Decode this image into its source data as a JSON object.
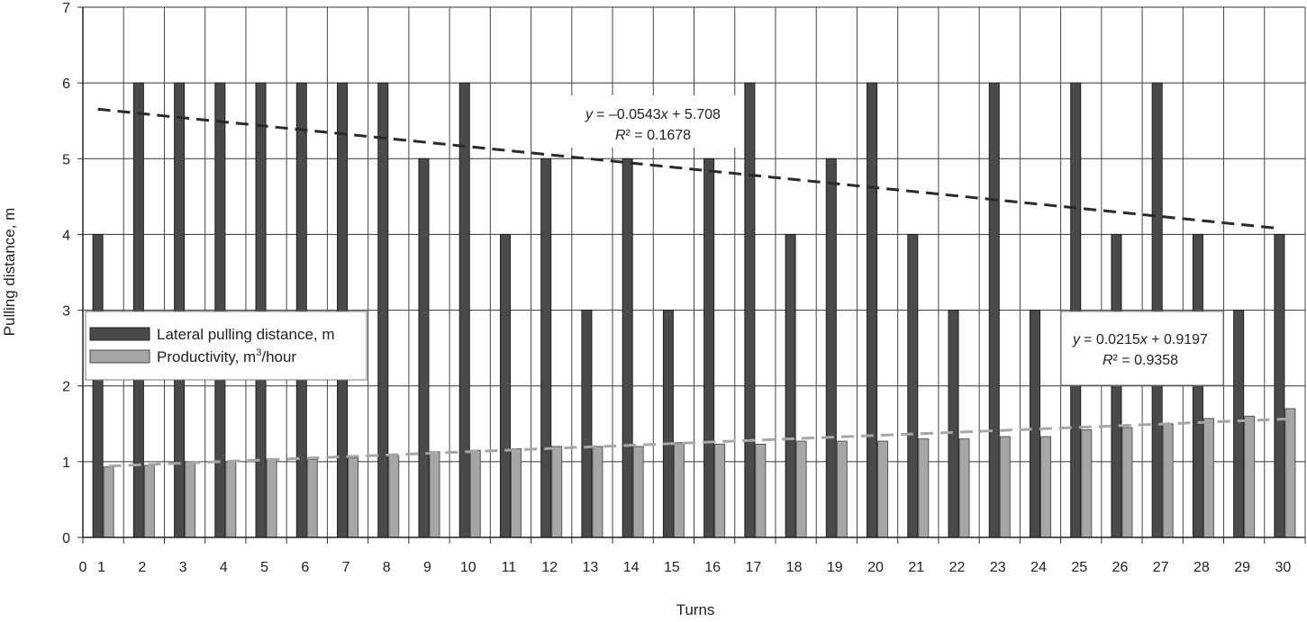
{
  "chart_data": {
    "type": "bar",
    "xlabel": "Turns",
    "ylabel": "Pulling distance, m",
    "ylim": [
      0,
      7
    ],
    "yticks": [
      "0",
      "1",
      "2",
      "3",
      "4",
      "5",
      "6",
      "7"
    ],
    "x_zero_label": "0",
    "categories": [
      "1",
      "2",
      "3",
      "4",
      "5",
      "6",
      "7",
      "8",
      "9",
      "10",
      "11",
      "12",
      "13",
      "14",
      "15",
      "16",
      "17",
      "18",
      "19",
      "20",
      "21",
      "22",
      "23",
      "24",
      "25",
      "26",
      "27",
      "28",
      "29",
      "30"
    ],
    "grid": true,
    "legend_position": "middle-left",
    "series": [
      {
        "name": "Lateral pulling distance, m",
        "color": "#4a4a4a",
        "values": [
          4,
          6,
          6,
          6,
          6,
          6,
          6,
          6,
          5,
          6,
          4,
          5,
          3,
          5,
          3,
          5,
          6,
          4,
          5,
          6,
          4,
          3,
          6,
          3,
          6,
          4,
          6,
          4,
          3,
          4
        ]
      },
      {
        "name": "Productivity, m",
        "name_sup": "3",
        "name_suffix": "/hour",
        "color": "#a6a6a6",
        "values": [
          0.93,
          0.95,
          1.0,
          1.0,
          1.03,
          1.03,
          1.05,
          1.08,
          1.13,
          1.15,
          1.17,
          1.2,
          1.2,
          1.2,
          1.25,
          1.23,
          1.23,
          1.27,
          1.27,
          1.27,
          1.3,
          1.3,
          1.33,
          1.33,
          1.42,
          1.45,
          1.5,
          1.57,
          1.6,
          1.7
        ]
      }
    ],
    "trendlines": [
      {
        "series": 0,
        "slope": -0.0543,
        "intercept": 5.708,
        "color": "#2a2a2a",
        "equation": "= –0.0543",
        "equation_tail": " + 5.708",
        "r2": " = 0.1678"
      },
      {
        "series": 1,
        "slope": 0.0215,
        "intercept": 0.9197,
        "color": "#a6a6a6",
        "equation": "= 0.0215",
        "equation_tail": " + 0.9197",
        "r2": " = 0.9358"
      }
    ]
  }
}
